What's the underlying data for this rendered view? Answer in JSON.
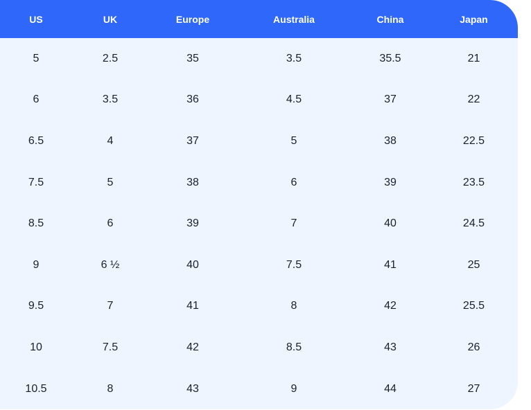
{
  "table": {
    "header": [
      "US",
      "UK",
      "Europe",
      "Australia",
      "China",
      "Japan"
    ],
    "rows": [
      [
        5,
        2.5,
        35,
        3.5,
        35.5,
        21
      ],
      [
        6,
        3.5,
        36,
        4.5,
        37,
        22
      ],
      [
        6.5,
        4,
        37,
        5,
        38,
        22.5
      ],
      [
        7.5,
        5,
        38,
        6,
        39,
        23.5
      ],
      [
        8.5,
        6,
        39,
        7,
        40,
        24.5
      ],
      [
        9,
        "6 ½",
        40,
        7.5,
        41,
        25
      ],
      [
        9.5,
        7,
        41,
        8,
        42,
        25.5
      ],
      [
        10,
        7.5,
        42,
        8.5,
        43,
        26
      ],
      [
        10.5,
        8,
        43,
        9,
        44,
        27
      ]
    ]
  }
}
